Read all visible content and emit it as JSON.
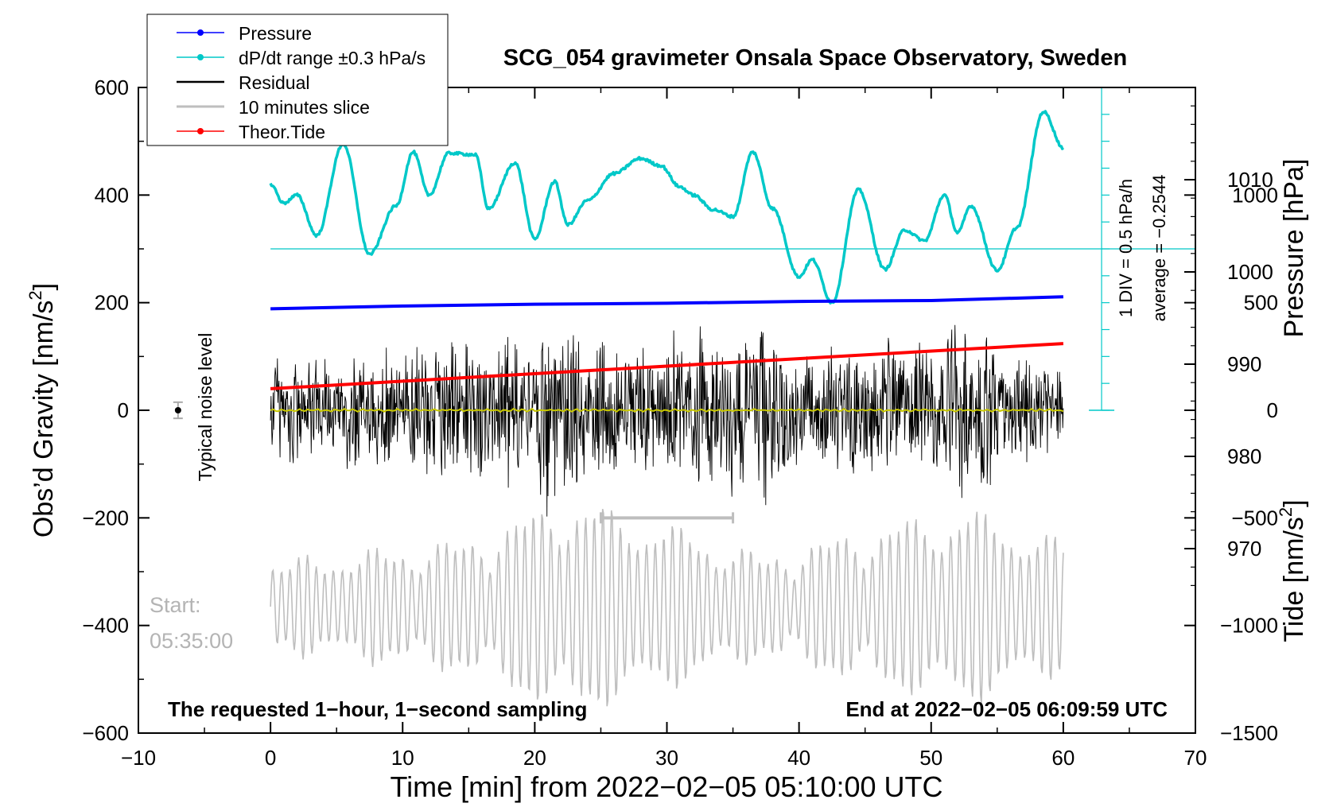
{
  "chart_data": {
    "type": "line",
    "title": "SCG_054 gravimeter Onsala Space Observatory, Sweden",
    "xlabel": "Time [min] from 2022−02−05 05:10:00 UTC",
    "ylabel_left": "Obs’d Gravity [nm/s",
    "ylabel_left_sup": "2",
    "ylabel_left_end": "]",
    "ylabel_right_pressure": "Pressure [hPa]",
    "ylabel_right_tide": "Tide [nm/s",
    "ylabel_right_tide_sup": "2",
    "ylabel_right_tide_end": "]",
    "xlim": [
      -10,
      70
    ],
    "ylim": [
      -600,
      600
    ],
    "pressure_lim": [
      950,
      1020
    ],
    "tide_lim": [
      -1500,
      1500
    ],
    "x_ticks": [
      "−10",
      "0",
      "10",
      "20",
      "30",
      "40",
      "50",
      "60",
      "70"
    ],
    "x_tick_values": [
      -10,
      0,
      10,
      20,
      30,
      40,
      50,
      60,
      70
    ],
    "y_ticks": [
      "600",
      "400",
      "200",
      "0",
      "−200",
      "−400",
      "−600"
    ],
    "y_tick_values": [
      600,
      400,
      200,
      0,
      -200,
      -400,
      -600
    ],
    "pressure_ticks": [
      "1010",
      "1000",
      "990",
      "980",
      "970"
    ],
    "pressure_tick_values": [
      1010,
      1000,
      990,
      980,
      970
    ],
    "tide_ticks": [
      "1000",
      "500",
      "0",
      "−500",
      "−1000",
      "−1500"
    ],
    "tide_tick_values": [
      1000,
      500,
      0,
      -500,
      -1000,
      -1500
    ],
    "legend": {
      "position": "top-left",
      "entries": [
        {
          "label": "Pressure",
          "color": "#0000ff",
          "marker": true
        },
        {
          "label": "dP/dt range ±0.3 hPa/s",
          "color": "#00c8c8",
          "marker": true
        },
        {
          "label": "Residual",
          "color": "#000000",
          "marker": false
        },
        {
          "label": "10 minutes slice",
          "color": "#bebebe",
          "marker": false
        },
        {
          "label": "Theor.Tide",
          "color": "#ff0000",
          "marker": true
        }
      ]
    },
    "annotations": {
      "noise_label": "Typical noise level",
      "noise_point": {
        "x": -7,
        "y": 0,
        "error": 15
      },
      "start_label": "Start:",
      "start_time": "05:35:00",
      "footer_left": "The requested 1−hour, 1−second sampling",
      "footer_right": "End at 2022−02−05 06:09:59 UTC",
      "scale_label": "1 DIV = 0.5 hPa/h",
      "scale_average": "average = −0.2544",
      "slice_range": [
        25,
        35
      ]
    },
    "series": [
      {
        "name": "Pressure",
        "color": "#0000ff",
        "axis": "pressure",
        "x": [
          0,
          10,
          20,
          30,
          40,
          50,
          60
        ],
        "values": [
          996.0,
          996.3,
          996.5,
          996.6,
          996.8,
          996.9,
          997.3
        ]
      },
      {
        "name": "dP/dt",
        "color": "#00c8c8",
        "axis": "gravity",
        "x": [
          0,
          1,
          2,
          3.5,
          5.5,
          7.5,
          9.5,
          10.8,
          12,
          13.5,
          15.5,
          16.5,
          18.5,
          20,
          21.5,
          22.5,
          24,
          26,
          28,
          29.5,
          31,
          32,
          33.5,
          35,
          36.5,
          38,
          40,
          41,
          42.5,
          44.5,
          46.5,
          48,
          49.5,
          51,
          52,
          53,
          55,
          56.5,
          58.5,
          60
        ],
        "values": [
          420,
          385,
          400,
          325,
          495,
          290,
          380,
          480,
          400,
          478,
          475,
          375,
          460,
          318,
          425,
          345,
          390,
          440,
          468,
          455,
          415,
          400,
          373,
          360,
          480,
          375,
          248,
          280,
          200,
          410,
          262,
          335,
          315,
          400,
          330,
          380,
          260,
          340,
          555,
          488
        ]
      },
      {
        "name": "Residual",
        "color": "#000000",
        "axis": "gravity",
        "x": [
          0,
          5,
          10,
          15,
          20,
          21,
          23,
          25,
          28,
          30,
          35,
          38,
          40,
          45,
          50,
          53,
          55,
          60
        ],
        "envelope": [
          140,
          120,
          150,
          170,
          150,
          230,
          180,
          150,
          160,
          170,
          180,
          200,
          130,
          150,
          150,
          200,
          150,
          120
        ]
      },
      {
        "name": "Residual mean",
        "color": "#c8c800",
        "axis": "gravity",
        "x": [
          0,
          60
        ],
        "values": [
          0,
          0
        ]
      },
      {
        "name": "Theor.Tide",
        "color": "#ff0000",
        "axis": "tide",
        "x": [
          0,
          60
        ],
        "values": [
          100,
          310
        ]
      },
      {
        "name": "10 minutes slice",
        "color": "#bebebe",
        "axis": "gravity",
        "x": [
          0,
          60
        ],
        "center": -365,
        "envelope": [
          80,
          100,
          120,
          200,
          150,
          90,
          140,
          180,
          120
        ]
      }
    ]
  }
}
